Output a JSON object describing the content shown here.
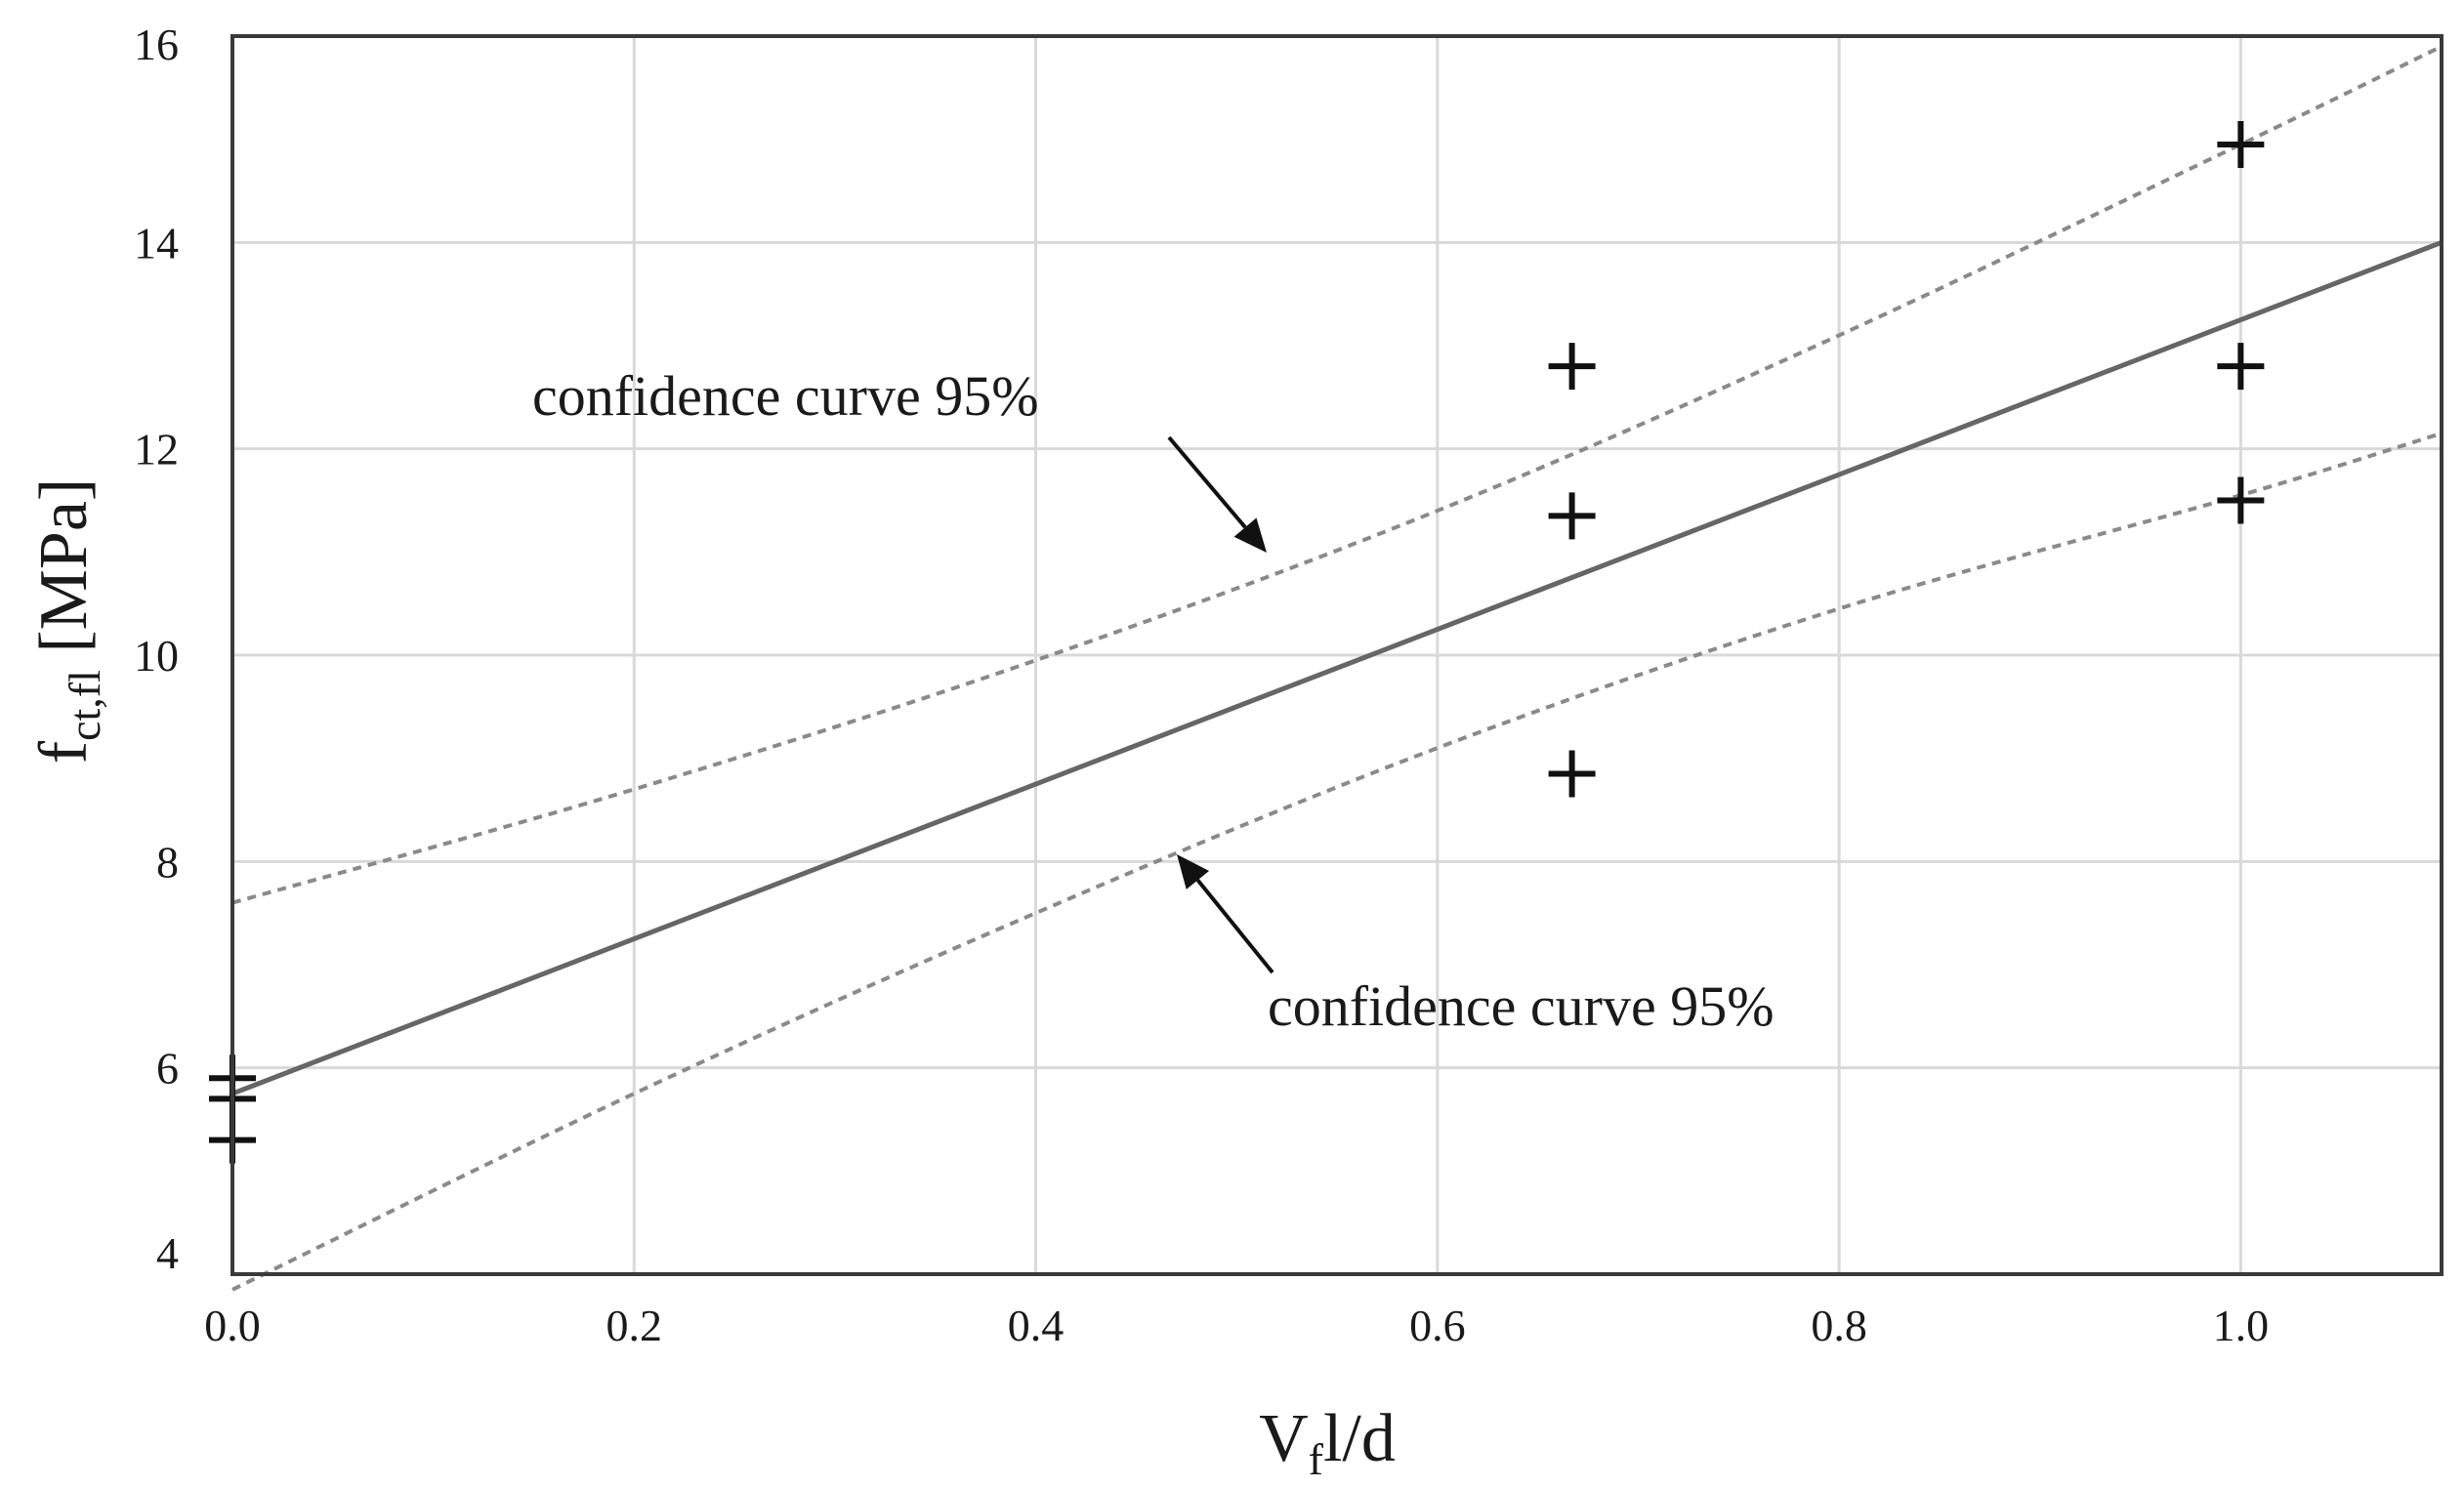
{
  "chart_data": {
    "type": "scatter",
    "title": "",
    "xlabel": {
      "main": "V",
      "sub": "f",
      "rest": "l/d"
    },
    "ylabel": {
      "main": "f",
      "sub": "ct,fl",
      "rest": " [MPa]"
    },
    "xlim": [
      0.0,
      1.1
    ],
    "ylim": [
      4,
      16
    ],
    "xticks": [
      0.0,
      0.2,
      0.4,
      0.6,
      0.8,
      1.0
    ],
    "xtick_labels": [
      "0.0",
      "0.2",
      "0.4",
      "0.6",
      "0.8",
      "1.0"
    ],
    "yticks": [
      4,
      6,
      8,
      10,
      12,
      14,
      16
    ],
    "ytick_labels": [
      "4",
      "6",
      "8",
      "10",
      "12",
      "14",
      "16"
    ],
    "grid": true,
    "points": [
      {
        "x": 0.0,
        "y": 5.9
      },
      {
        "x": 0.0,
        "y": 5.7
      },
      {
        "x": 0.0,
        "y": 5.3
      },
      {
        "x": 0.667,
        "y": 12.8
      },
      {
        "x": 0.667,
        "y": 11.35
      },
      {
        "x": 0.667,
        "y": 8.85
      },
      {
        "x": 1.0,
        "y": 14.95
      },
      {
        "x": 1.0,
        "y": 12.8
      },
      {
        "x": 1.0,
        "y": 11.5
      }
    ],
    "fit_line": {
      "x": [
        0.0,
        1.1
      ],
      "y": [
        5.75,
        14.0
      ]
    },
    "upper_confidence": {
      "x": [
        0.0,
        0.2,
        0.4,
        0.6,
        0.8,
        1.0,
        1.1
      ],
      "y": [
        7.6,
        8.7,
        9.95,
        11.4,
        13.1,
        14.95,
        15.9
      ]
    },
    "lower_confidence": {
      "x": [
        0.0,
        0.2,
        0.4,
        0.6,
        0.8,
        1.0,
        1.1
      ],
      "y": [
        3.85,
        5.75,
        7.5,
        9.1,
        10.45,
        11.55,
        12.15
      ]
    },
    "annotations": [
      {
        "text": "confidence curve 95%",
        "target": "upper_confidence",
        "placement": "above-left"
      },
      {
        "text": "confidence curve 95%",
        "target": "lower_confidence",
        "placement": "below-right"
      }
    ]
  }
}
